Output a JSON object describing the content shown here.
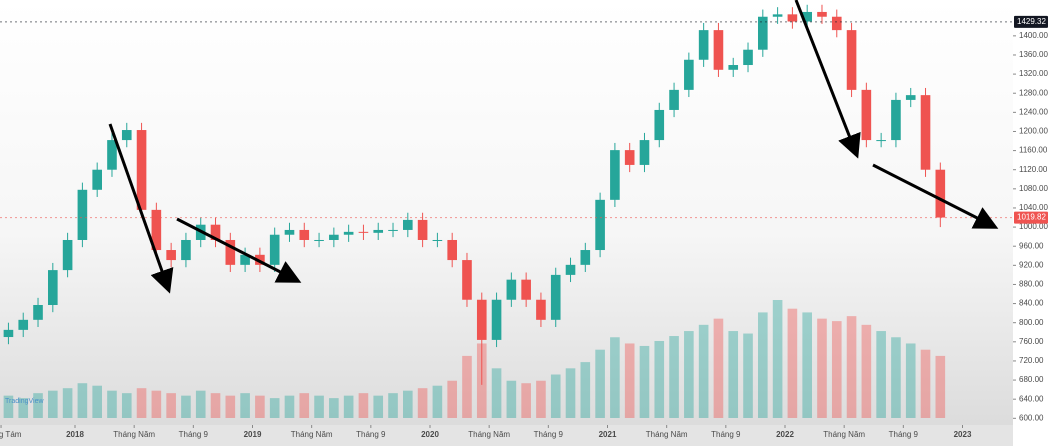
{
  "chart_data": {
    "type": "candlestick",
    "x": [
      "2017-08",
      "2017-09",
      "2017-10",
      "2017-11",
      "2017-12",
      "2018-01",
      "2018-02",
      "2018-03",
      "2018-04",
      "2018-05",
      "2018-06",
      "2018-07",
      "2018-08",
      "2018-09",
      "2018-10",
      "2018-11",
      "2018-12",
      "2019-01",
      "2019-02",
      "2019-03",
      "2019-04",
      "2019-05",
      "2019-06",
      "2019-07",
      "2019-08",
      "2019-09",
      "2019-10",
      "2019-11",
      "2019-12",
      "2020-01",
      "2020-02",
      "2020-03",
      "2020-04",
      "2020-05",
      "2020-06",
      "2020-07",
      "2020-08",
      "2020-09",
      "2020-10",
      "2020-11",
      "2020-12",
      "2021-01",
      "2021-02",
      "2021-03",
      "2021-04",
      "2021-05",
      "2021-06",
      "2021-07",
      "2021-08",
      "2021-09",
      "2021-10",
      "2021-11",
      "2021-12",
      "2022-01",
      "2022-02",
      "2022-03",
      "2022-04",
      "2022-05",
      "2022-06",
      "2022-07",
      "2022-08",
      "2022-09",
      "2022-10",
      "2022-11"
    ],
    "open": [
      770,
      785,
      806,
      837,
      910,
      973,
      1078,
      1120,
      1182,
      1203,
      1036,
      952,
      931,
      973,
      1005,
      973,
      921,
      942,
      921,
      984,
      994,
      973,
      973,
      984,
      990,
      988,
      994,
      994,
      1015,
      973,
      973,
      931,
      848,
      764,
      848,
      890,
      848,
      806,
      900,
      921,
      952,
      1057,
      1161,
      1130,
      1182,
      1245,
      1287,
      1350,
      1412,
      1329,
      1339,
      1371,
      1440,
      1445,
      1430,
      1450,
      1440,
      1412,
      1287,
      1182,
      1182,
      1266,
      1276,
      1120
    ],
    "high": [
      800,
      821,
      852,
      925,
      988,
      1093,
      1135,
      1197,
      1218,
      1218,
      1051,
      967,
      988,
      1020,
      1020,
      988,
      957,
      957,
      999,
      1009,
      1009,
      988,
      999,
      1005,
      1005,
      1009,
      1009,
      1030,
      1030,
      988,
      988,
      946,
      863,
      863,
      905,
      905,
      863,
      915,
      936,
      967,
      1072,
      1176,
      1176,
      1197,
      1260,
      1302,
      1365,
      1427,
      1427,
      1354,
      1386,
      1455,
      1460,
      1460,
      1465,
      1465,
      1455,
      1427,
      1302,
      1197,
      1281,
      1291,
      1291,
      1135
    ],
    "low": [
      755,
      770,
      791,
      822,
      895,
      958,
      1063,
      1105,
      1167,
      1021,
      937,
      916,
      916,
      958,
      958,
      906,
      906,
      906,
      906,
      969,
      958,
      958,
      958,
      969,
      973,
      973,
      979,
      979,
      958,
      958,
      916,
      833,
      670,
      749,
      833,
      833,
      791,
      791,
      885,
      906,
      937,
      1042,
      1115,
      1115,
      1167,
      1230,
      1272,
      1335,
      1314,
      1314,
      1324,
      1356,
      1425,
      1415,
      1415,
      1425,
      1397,
      1272,
      1167,
      1167,
      1167,
      1251,
      1105,
      1000
    ],
    "close": [
      785,
      806,
      837,
      910,
      973,
      1078,
      1120,
      1182,
      1203,
      1036,
      952,
      931,
      973,
      1005,
      973,
      921,
      942,
      921,
      984,
      994,
      973,
      973,
      984,
      990,
      988,
      994,
      994,
      1015,
      973,
      973,
      931,
      848,
      764,
      848,
      890,
      848,
      806,
      900,
      921,
      952,
      1057,
      1161,
      1130,
      1182,
      1245,
      1287,
      1350,
      1412,
      1329,
      1339,
      1371,
      1440,
      1445,
      1430,
      1450,
      1440,
      1412,
      1287,
      1182,
      1182,
      1266,
      1276,
      1120,
      1020
    ],
    "volume": [
      18,
      16,
      20,
      22,
      24,
      28,
      26,
      22,
      20,
      24,
      22,
      20,
      18,
      22,
      20,
      18,
      20,
      18,
      16,
      18,
      20,
      18,
      16,
      18,
      20,
      18,
      20,
      22,
      24,
      26,
      30,
      50,
      60,
      40,
      30,
      28,
      30,
      35,
      40,
      45,
      55,
      65,
      60,
      58,
      62,
      66,
      70,
      75,
      80,
      70,
      68,
      85,
      95,
      88,
      85,
      80,
      78,
      82,
      75,
      70,
      65,
      60,
      55,
      50
    ],
    "up_color": "#26a69a",
    "down_color": "#ef5350",
    "ylim": [
      586,
      1475
    ],
    "yticks": [
      {
        "value": 600,
        "label": "600.00"
      },
      {
        "value": 640,
        "label": "640.00"
      },
      {
        "value": 680,
        "label": "680.00"
      },
      {
        "value": 720,
        "label": "720.00"
      },
      {
        "value": 760,
        "label": "760.00"
      },
      {
        "value": 800,
        "label": "800.00"
      },
      {
        "value": 840,
        "label": "840.00"
      },
      {
        "value": 880,
        "label": "880.00"
      },
      {
        "value": 920,
        "label": "920.00"
      },
      {
        "value": 960,
        "label": "960.00"
      },
      {
        "value": 1000,
        "label": "1000.00"
      },
      {
        "value": 1040,
        "label": "1040.00"
      },
      {
        "value": 1080,
        "label": "1080.00"
      },
      {
        "value": 1120,
        "label": "1120.00"
      },
      {
        "value": 1160,
        "label": "1160.00"
      },
      {
        "value": 1200,
        "label": "1200.00"
      },
      {
        "value": 1240,
        "label": "1240.00"
      },
      {
        "value": 1280,
        "label": "1280.00"
      },
      {
        "value": 1320,
        "label": "1320.00"
      },
      {
        "value": 1360,
        "label": "1360.00"
      },
      {
        "value": 1400,
        "label": "1400.00"
      }
    ],
    "xticks": [
      {
        "value": "2017-08",
        "label": "Tháng Tám"
      },
      {
        "value": "2018-01",
        "label": "2018"
      },
      {
        "value": "2018-05",
        "label": "Tháng Năm"
      },
      {
        "value": "2018-09",
        "label": "Tháng 9"
      },
      {
        "value": "2019-01",
        "label": "2019"
      },
      {
        "value": "2019-05",
        "label": "Tháng Năm"
      },
      {
        "value": "2019-09",
        "label": "Tháng 9"
      },
      {
        "value": "2020-01",
        "label": "2020"
      },
      {
        "value": "2020-05",
        "label": "Tháng Năm"
      },
      {
        "value": "2020-09",
        "label": "Tháng 9"
      },
      {
        "value": "2021-01",
        "label": "2021"
      },
      {
        "value": "2021-05",
        "label": "Tháng Năm"
      },
      {
        "value": "2021-09",
        "label": "Tháng 9"
      },
      {
        "value": "2022-01",
        "label": "2022"
      },
      {
        "value": "2022-05",
        "label": "Tháng Năm"
      },
      {
        "value": "2022-09",
        "label": "Tháng 9"
      },
      {
        "value": "2023-01",
        "label": "2023"
      }
    ],
    "price_lines": [
      {
        "value": 1429.32,
        "label": "1429.32",
        "color": "#131722"
      },
      {
        "value": 1019.82,
        "label": "1019.82",
        "color": "#ef5350"
      }
    ],
    "watermark": "TradingView"
  }
}
